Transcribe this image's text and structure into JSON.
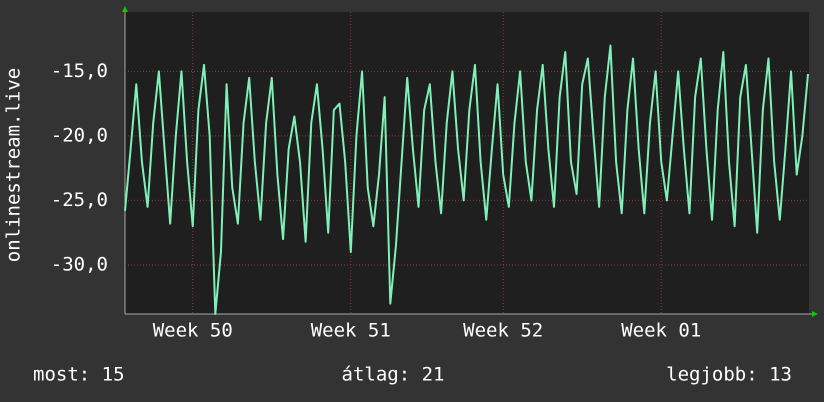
{
  "chart_data": {
    "type": "line",
    "y_label": "onlinestream.live",
    "categories": [
      null,
      null,
      null,
      null,
      null,
      null,
      null,
      null,
      null,
      null,
      null,
      null,
      "Week 50",
      null,
      null,
      null,
      null,
      null,
      null,
      null,
      null,
      null,
      null,
      null,
      null,
      null,
      null,
      null,
      null,
      null,
      null,
      null,
      null,
      null,
      null,
      null,
      null,
      null,
      null,
      null,
      "Week 51",
      null,
      null,
      null,
      null,
      null,
      null,
      null,
      null,
      null,
      null,
      null,
      null,
      null,
      null,
      null,
      null,
      null,
      null,
      null,
      null,
      null,
      null,
      null,
      null,
      null,
      null,
      "Week 52",
      null,
      null,
      null,
      null,
      null,
      null,
      null,
      null,
      null,
      null,
      null,
      null,
      null,
      null,
      null,
      null,
      null,
      null,
      null,
      null,
      null,
      null,
      null,
      null,
      null,
      null,
      null,
      "Week 01",
      null,
      null,
      null,
      null,
      null,
      null,
      null,
      null,
      null,
      null,
      null,
      null,
      null,
      null,
      null,
      null,
      null,
      null,
      null,
      null,
      null,
      null,
      null,
      null,
      null,
      null
    ],
    "series": [
      {
        "name": "onlinestream.live",
        "color": "#80f0b8",
        "values": [
          -25.8,
          -21,
          -16,
          -22,
          -25.5,
          -19,
          -15,
          -21,
          -26.8,
          -20,
          -15,
          -22,
          -27,
          -18,
          -14.5,
          -20,
          -33.8,
          -29,
          -16,
          -24,
          -26.8,
          -19,
          -15.5,
          -22,
          -26.5,
          -19,
          -15.5,
          -23,
          -28,
          -21,
          -18.5,
          -22,
          -28.2,
          -19,
          -16,
          -21,
          -27.5,
          -18,
          -17.5,
          -22,
          -29,
          -20,
          -15,
          -24,
          -27,
          -23,
          -17,
          -33,
          -28.5,
          -22,
          -15.5,
          -21,
          -25.5,
          -18,
          -16,
          -22,
          -26,
          -19,
          -15,
          -21,
          -25,
          -18,
          -14.5,
          -22,
          -26.5,
          -21,
          -16,
          -23,
          -25.5,
          -19,
          -15,
          -22,
          -25,
          -18,
          -14.5,
          -21,
          -25.5,
          -17,
          -13.5,
          -22,
          -24.5,
          -16,
          -14,
          -20,
          -25.5,
          -17,
          -13,
          -22,
          -26,
          -18,
          -14,
          -21,
          -26,
          -19,
          -15,
          -22,
          -25,
          -20,
          -15,
          -21,
          -26,
          -17,
          -14,
          -21,
          -26.5,
          -18,
          -13.5,
          -22,
          -27,
          -17,
          -14.5,
          -21,
          -27.5,
          -18,
          -14,
          -22,
          -26.5,
          -21,
          -15,
          -23,
          -20,
          -15.2
        ]
      }
    ],
    "ylim": [
      -33.8,
      -10.4
    ],
    "yticks": [
      {
        "value": -15,
        "label": "-15,0"
      },
      {
        "value": -20,
        "label": "-20,0"
      },
      {
        "value": -25,
        "label": "-25,0"
      },
      {
        "value": -30,
        "label": "-30,0"
      }
    ],
    "grid": true,
    "footer": [
      "most: 15",
      "átlag: 21",
      "legjobb: 13"
    ]
  }
}
